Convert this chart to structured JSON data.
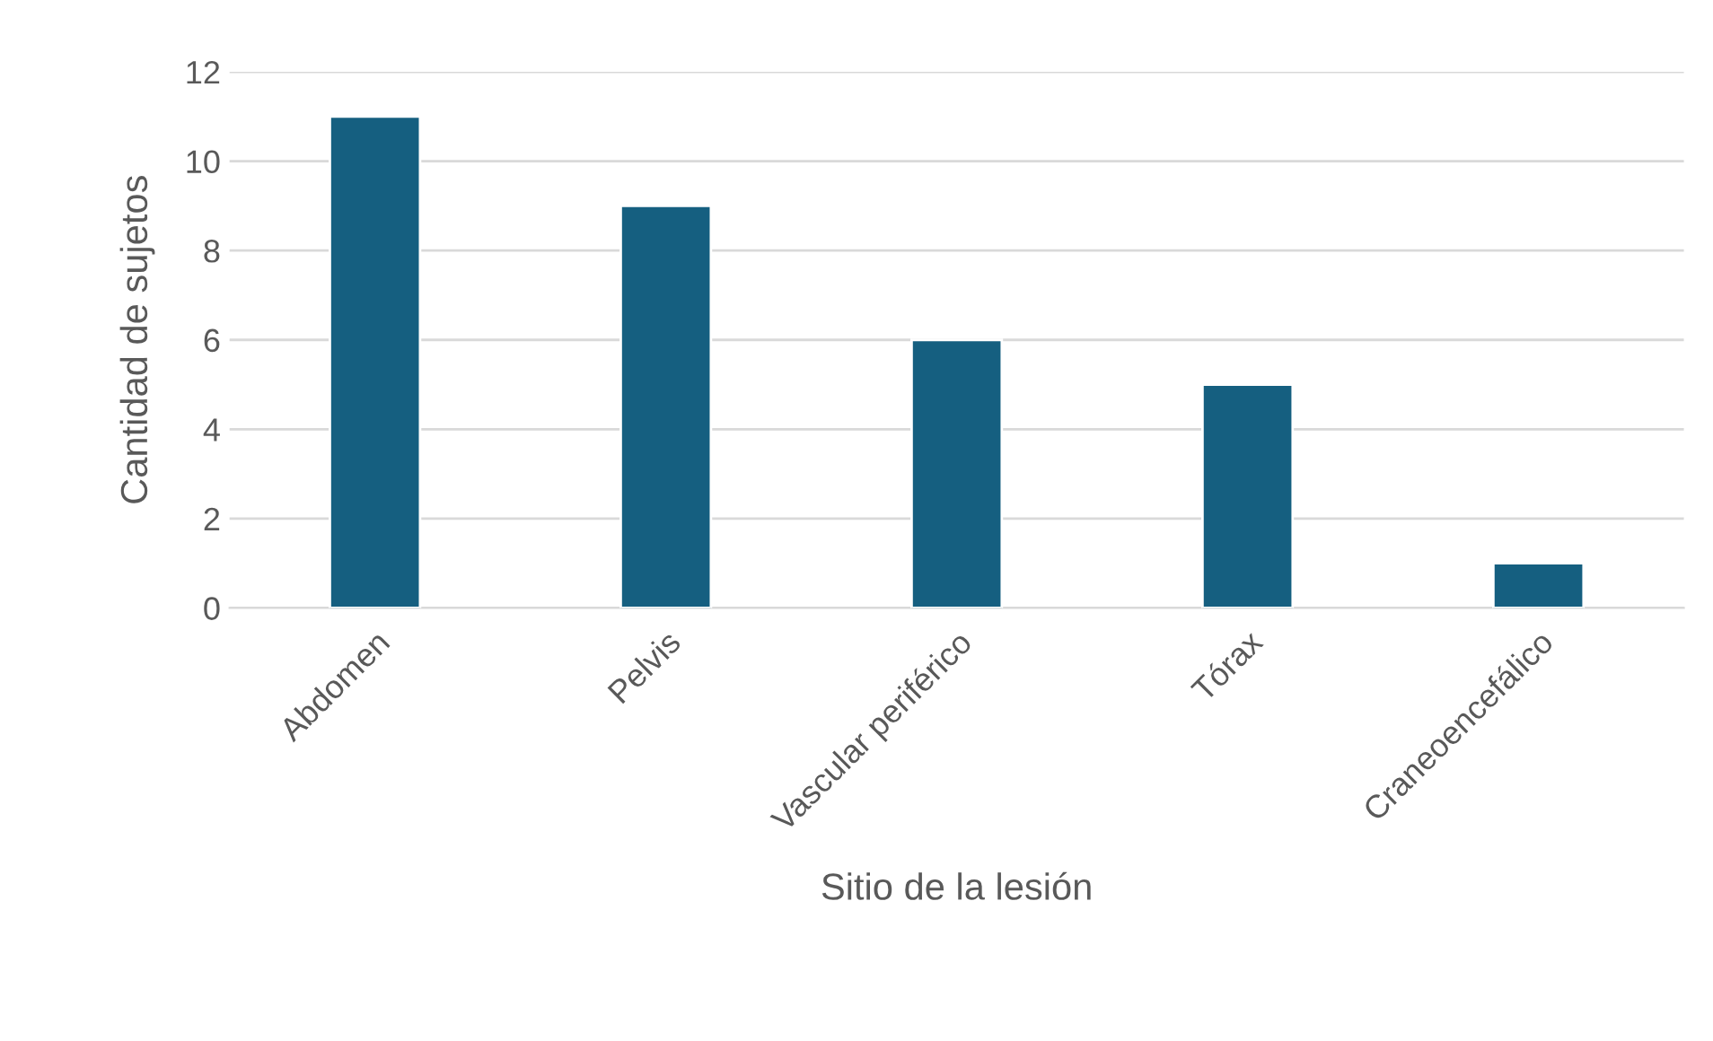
{
  "chart_data": {
    "type": "bar",
    "xlabel": "Sitio de la lesión",
    "ylabel": "Cantidad de sujetos",
    "categories": [
      "Abdomen",
      "Pelvis",
      "Vascular periférico",
      "Tórax",
      "Craneoencefálico"
    ],
    "values": [
      11,
      9,
      6,
      5,
      1
    ],
    "color": "#155f80",
    "ylim": [
      0,
      12
    ],
    "yticks": [
      0,
      2,
      4,
      6,
      8,
      10,
      12
    ],
    "grid": "y",
    "legend": false
  }
}
